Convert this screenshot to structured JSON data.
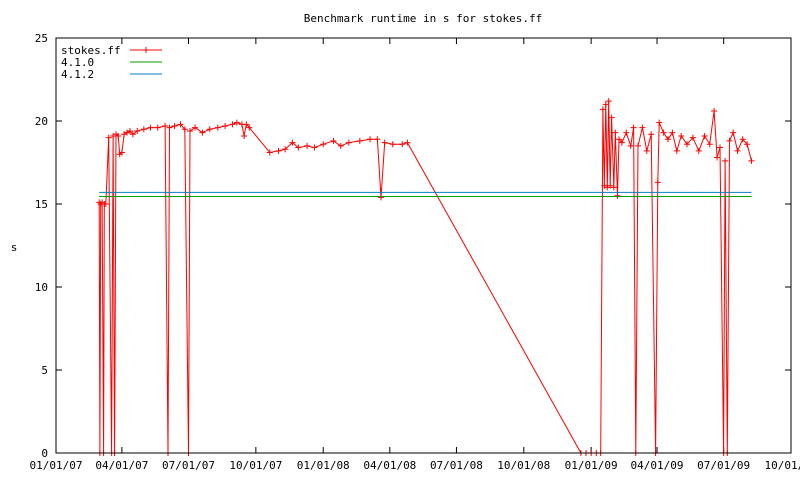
{
  "chart_data": {
    "type": "line",
    "title": "Benchmark runtime in s for stokes.ff",
    "xlabel": "",
    "ylabel": "s",
    "xlim": [
      "2007-01-01",
      "2009-10-01"
    ],
    "ylim": [
      0,
      25
    ],
    "x_ticks": [
      "2007-01-01",
      "2007-04-01",
      "2007-07-01",
      "2007-10-01",
      "2008-01-01",
      "2008-04-01",
      "2008-07-01",
      "2008-10-01",
      "2009-01-01",
      "2009-04-01",
      "2009-07-01",
      "2009-10-01"
    ],
    "x_tick_labels": [
      "01/01/07",
      "04/01/07",
      "07/01/07",
      "10/01/07",
      "01/01/08",
      "04/01/08",
      "07/01/08",
      "10/01/08",
      "01/01/09",
      "04/01/09",
      "07/01/09",
      "10/01/09"
    ],
    "y_ticks": [
      0,
      5,
      10,
      15,
      20,
      25
    ],
    "legend_position": "top-left",
    "grid": false,
    "series": [
      {
        "name": "stokes.ff",
        "color": "#ff0000",
        "style": "linespoints",
        "points": [
          [
            "2007-03-01",
            15.1
          ],
          [
            "2007-03-02",
            0
          ],
          [
            "2007-03-03",
            15.0
          ],
          [
            "2007-03-05",
            15.1
          ],
          [
            "2007-03-07",
            0
          ],
          [
            "2007-03-08",
            15.0
          ],
          [
            "2007-03-10",
            15.0
          ],
          [
            "2007-03-14",
            19.0
          ],
          [
            "2007-03-18",
            0
          ],
          [
            "2007-03-20",
            19.1
          ],
          [
            "2007-03-22",
            0
          ],
          [
            "2007-03-24",
            19.2
          ],
          [
            "2007-03-27",
            19.1
          ],
          [
            "2007-03-29",
            18.0
          ],
          [
            "2007-04-01",
            18.1
          ],
          [
            "2007-04-04",
            19.2
          ],
          [
            "2007-04-08",
            19.3
          ],
          [
            "2007-04-12",
            19.4
          ],
          [
            "2007-04-16",
            19.2
          ],
          [
            "2007-04-22",
            19.4
          ],
          [
            "2007-05-01",
            19.5
          ],
          [
            "2007-05-10",
            19.6
          ],
          [
            "2007-05-20",
            19.6
          ],
          [
            "2007-05-30",
            19.7
          ],
          [
            "2007-06-03",
            0
          ],
          [
            "2007-06-05",
            19.6
          ],
          [
            "2007-06-12",
            19.7
          ],
          [
            "2007-06-20",
            19.8
          ],
          [
            "2007-06-26",
            19.5
          ],
          [
            "2007-07-01",
            0
          ],
          [
            "2007-07-03",
            19.4
          ],
          [
            "2007-07-10",
            19.6
          ],
          [
            "2007-07-20",
            19.3
          ],
          [
            "2007-07-30",
            19.5
          ],
          [
            "2007-08-10",
            19.6
          ],
          [
            "2007-08-20",
            19.7
          ],
          [
            "2007-08-30",
            19.8
          ],
          [
            "2007-09-05",
            19.9
          ],
          [
            "2007-09-12",
            19.8
          ],
          [
            "2007-09-15",
            19.1
          ],
          [
            "2007-09-18",
            19.8
          ],
          [
            "2007-09-22",
            19.6
          ],
          [
            "2007-10-20",
            18.1
          ],
          [
            "2007-11-01",
            18.2
          ],
          [
            "2007-11-10",
            18.3
          ],
          [
            "2007-11-20",
            18.7
          ],
          [
            "2007-11-28",
            18.4
          ],
          [
            "2007-12-10",
            18.5
          ],
          [
            "2007-12-20",
            18.4
          ],
          [
            "2008-01-01",
            18.6
          ],
          [
            "2008-01-15",
            18.8
          ],
          [
            "2008-01-25",
            18.5
          ],
          [
            "2008-02-05",
            18.7
          ],
          [
            "2008-02-20",
            18.8
          ],
          [
            "2008-03-05",
            18.9
          ],
          [
            "2008-03-15",
            18.9
          ],
          [
            "2008-03-20",
            15.4
          ],
          [
            "2008-03-25",
            18.7
          ],
          [
            "2008-04-05",
            18.6
          ],
          [
            "2008-04-18",
            18.6
          ],
          [
            "2008-04-25",
            18.7
          ],
          [
            "2008-12-18",
            0
          ],
          [
            "2008-12-25",
            0
          ],
          [
            "2009-01-01",
            0
          ],
          [
            "2009-01-08",
            0
          ],
          [
            "2009-01-14",
            0
          ],
          [
            "2009-01-17",
            20.7
          ],
          [
            "2009-01-19",
            16.1
          ],
          [
            "2009-01-21",
            21.0
          ],
          [
            "2009-01-23",
            16.0
          ],
          [
            "2009-01-25",
            21.2
          ],
          [
            "2009-01-27",
            16.1
          ],
          [
            "2009-01-29",
            20.2
          ],
          [
            "2009-02-01",
            16.0
          ],
          [
            "2009-02-03",
            19.3
          ],
          [
            "2009-02-06",
            15.5
          ],
          [
            "2009-02-08",
            18.9
          ],
          [
            "2009-02-12",
            18.7
          ],
          [
            "2009-02-18",
            19.3
          ],
          [
            "2009-02-24",
            18.5
          ],
          [
            "2009-02-28",
            19.6
          ],
          [
            "2009-03-03",
            0
          ],
          [
            "2009-03-06",
            18.5
          ],
          [
            "2009-03-12",
            19.6
          ],
          [
            "2009-03-18",
            18.2
          ],
          [
            "2009-03-24",
            19.2
          ],
          [
            "2009-03-30",
            0
          ],
          [
            "2009-04-02",
            16.3
          ],
          [
            "2009-04-04",
            19.9
          ],
          [
            "2009-04-10",
            19.3
          ],
          [
            "2009-04-16",
            18.9
          ],
          [
            "2009-04-22",
            19.3
          ],
          [
            "2009-04-28",
            18.2
          ],
          [
            "2009-05-04",
            19.1
          ],
          [
            "2009-05-12",
            18.6
          ],
          [
            "2009-05-20",
            19.0
          ],
          [
            "2009-05-28",
            18.2
          ],
          [
            "2009-06-05",
            19.1
          ],
          [
            "2009-06-12",
            18.6
          ],
          [
            "2009-06-18",
            20.6
          ],
          [
            "2009-06-22",
            17.8
          ],
          [
            "2009-06-26",
            18.4
          ],
          [
            "2009-07-01",
            0
          ],
          [
            "2009-07-03",
            17.6
          ],
          [
            "2009-07-06",
            0
          ],
          [
            "2009-07-09",
            18.8
          ],
          [
            "2009-07-14",
            19.3
          ],
          [
            "2009-07-20",
            18.2
          ],
          [
            "2009-07-27",
            18.9
          ],
          [
            "2009-08-02",
            18.6
          ],
          [
            "2009-08-08",
            17.6
          ]
        ]
      },
      {
        "name": "4.1.0",
        "color": "#00a000",
        "style": "lines",
        "points": [
          [
            "2007-03-01",
            15.45
          ],
          [
            "2009-08-08",
            15.45
          ]
        ]
      },
      {
        "name": "4.1.2",
        "color": "#0080c0",
        "style": "lines",
        "points": [
          [
            "2007-03-01",
            15.7
          ],
          [
            "2009-08-08",
            15.7
          ]
        ]
      }
    ]
  }
}
